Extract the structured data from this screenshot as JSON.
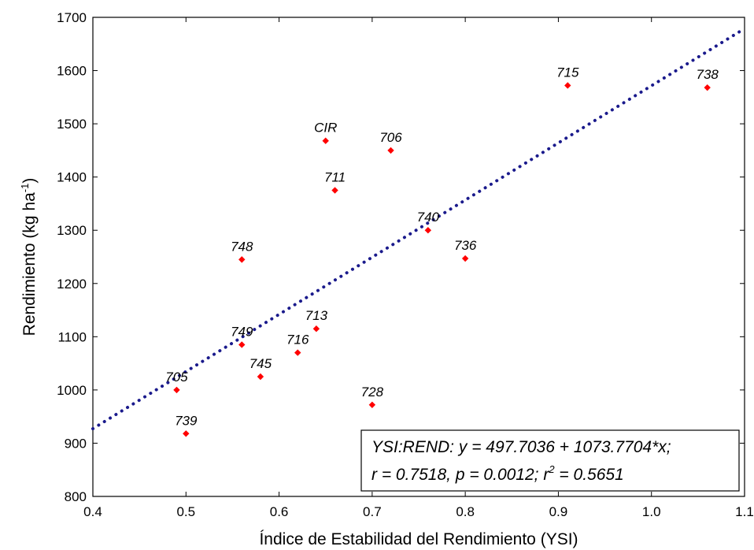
{
  "chart_data": {
    "type": "scatter",
    "xlabel": "Índice de Estabilidad del Rendimiento (YSI)",
    "ylabel": "Rendimiento (kg ha",
    "ylabel_sup": "-1",
    "ylabel_close": ")",
    "xlim": [
      0.4,
      1.1
    ],
    "ylim": [
      800,
      1700
    ],
    "xticks": [
      "0.4",
      "0.5",
      "0.6",
      "0.7",
      "0.8",
      "0.9",
      "1.0",
      "1.1"
    ],
    "yticks": [
      "800",
      "900",
      "1000",
      "1100",
      "1200",
      "1300",
      "1400",
      "1500",
      "1600",
      "1700"
    ],
    "marker_color": "#ff0000",
    "trend_color": "#1a1a8c",
    "points": [
      {
        "label": "705",
        "x": 0.49,
        "y": 1000
      },
      {
        "label": "739",
        "x": 0.5,
        "y": 918
      },
      {
        "label": "748",
        "x": 0.56,
        "y": 1245
      },
      {
        "label": "749",
        "x": 0.56,
        "y": 1085
      },
      {
        "label": "745",
        "x": 0.58,
        "y": 1025
      },
      {
        "label": "716",
        "x": 0.62,
        "y": 1070
      },
      {
        "label": "713",
        "x": 0.64,
        "y": 1115
      },
      {
        "label": "CIR",
        "x": 0.65,
        "y": 1468
      },
      {
        "label": "711",
        "x": 0.66,
        "y": 1375
      },
      {
        "label": "728",
        "x": 0.7,
        "y": 972
      },
      {
        "label": "706",
        "x": 0.72,
        "y": 1450
      },
      {
        "label": "740",
        "x": 0.76,
        "y": 1300
      },
      {
        "label": "736",
        "x": 0.8,
        "y": 1247
      },
      {
        "label": "715",
        "x": 0.91,
        "y": 1572
      },
      {
        "label": "738",
        "x": 1.06,
        "y": 1568
      }
    ],
    "regression": {
      "intercept": 497.7036,
      "slope": 1073.7704
    },
    "annotation": {
      "line1": "YSI:REND:   y = 497.7036 + 1073.7704*x;",
      "line2_main": "r = 0.7518, p = 0.0012; r",
      "line2_sup": "2",
      "line2_end": " = 0.5651"
    }
  }
}
